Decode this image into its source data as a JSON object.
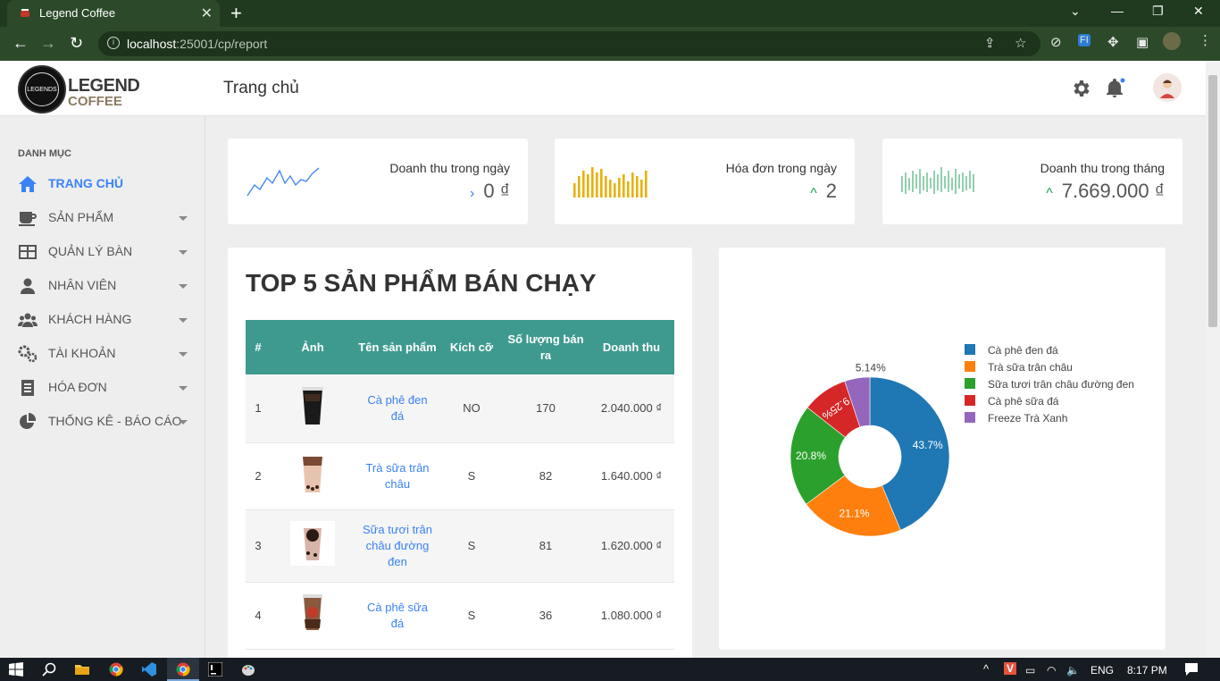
{
  "browser": {
    "tab_title": "Legend Coffee",
    "tab_close": "✕",
    "new_tab": "+",
    "url_host": "localhost",
    "url_rest": ":25001/cp/report"
  },
  "header": {
    "logo_circle_text": "LEGENDS",
    "logo_line1": "LEGEND",
    "logo_line2": "COFFEE",
    "page_title": "Trang chủ"
  },
  "sidebar": {
    "heading": "DANH MỤC",
    "items": [
      {
        "label": "TRANG CHỦ",
        "icon": "home-icon",
        "active": true
      },
      {
        "label": "SẢN PHẨM",
        "icon": "coffee-cup-icon"
      },
      {
        "label": "QUẢN LÝ BÀN",
        "icon": "table-icon"
      },
      {
        "label": "NHÂN VIÊN",
        "icon": "user-icon"
      },
      {
        "label": "KHÁCH HÀNG",
        "icon": "users-icon"
      },
      {
        "label": "TÀI KHOẢN",
        "icon": "gears-icon"
      },
      {
        "label": "HÓA ĐƠN",
        "icon": "receipt-icon"
      },
      {
        "label": "THỐNG KÊ - BÁO CÁO",
        "icon": "pie-chart-icon"
      }
    ]
  },
  "stats": [
    {
      "label": "Doanh thu trong ngày",
      "value": "0 ₫",
      "chevron": "›",
      "chevron_color": "#3b82f6"
    },
    {
      "label": "Hóa đơn trong ngày",
      "value": "2",
      "chevron": "^",
      "chevron_color": "#22a35a"
    },
    {
      "label": "Doanh thu trong tháng",
      "value": "7.669.000 ₫",
      "chevron": "^",
      "chevron_color": "#22a35a"
    }
  ],
  "top_products": {
    "title": "TOP 5 SẢN PHẨM BÁN CHẠY",
    "columns": [
      "#",
      "Ảnh",
      "Tên sản phẩm",
      "Kích cỡ",
      "Số lượng bán ra",
      "Doanh thu"
    ],
    "rows": [
      {
        "idx": "1",
        "name": "Cà phê đen đá",
        "size": "NO",
        "qty": "170",
        "revenue": "2.040.000 ₫"
      },
      {
        "idx": "2",
        "name": "Trà sữa trân châu",
        "size": "S",
        "qty": "82",
        "revenue": "1.640.000 ₫"
      },
      {
        "idx": "3",
        "name": "Sữa tươi trân châu đường đen",
        "size": "S",
        "qty": "81",
        "revenue": "1.620.000 ₫"
      },
      {
        "idx": "4",
        "name": "Cà phê sữa đá",
        "size": "S",
        "qty": "36",
        "revenue": "1.080.000 ₫"
      }
    ]
  },
  "chart_data": {
    "type": "pie",
    "labels": [
      "Cà phê đen đá",
      "Trà sữa trân châu",
      "Sữa tươi trân châu đường đen",
      "Cà phê sữa đá",
      "Freeze Trà Xanh"
    ],
    "values": [
      43.7,
      21.1,
      20.8,
      9.25,
      5.14
    ],
    "value_labels": [
      "43.7%",
      "21.1%",
      "20.8%",
      "9.25%",
      "5.14%"
    ],
    "colors": [
      "#1f77b4",
      "#ff7f0e",
      "#2ca02c",
      "#d62728",
      "#9467bd"
    ],
    "legend_placement": "right",
    "donut": true
  },
  "taskbar": {
    "lang": "ENG",
    "time": "8:17 PM"
  }
}
